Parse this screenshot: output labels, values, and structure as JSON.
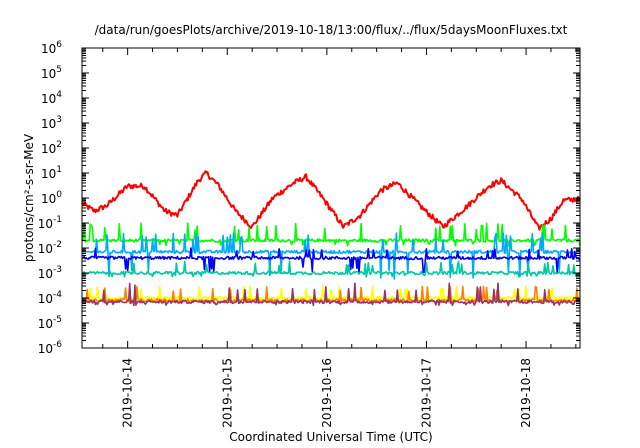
{
  "chart_data": {
    "type": "line",
    "title": "/data/run/goesPlots/archive/2019-10-18/13:00/flux/../flux/5daysMoonFluxes.txt",
    "xlabel": "Coordinated Universal Time (UTC)",
    "ylabel": "protons/cm²-s-sr-MeV",
    "yscale": "log",
    "ylim": [
      1e-06,
      1000000.0
    ],
    "xlim": [
      "2019-10-13T13:00",
      "2019-10-18T13:00"
    ],
    "xtick_labels": [
      "2019-10-14",
      "2019-10-15",
      "2019-10-16",
      "2019-10-17",
      "2019-10-18"
    ],
    "ytick_labels": [
      {
        "base": "10",
        "exp": "-6"
      },
      {
        "base": "10",
        "exp": "-5"
      },
      {
        "base": "10",
        "exp": "-4"
      },
      {
        "base": "10",
        "exp": "-3"
      },
      {
        "base": "10",
        "exp": "-2"
      },
      {
        "base": "10",
        "exp": "-1"
      },
      {
        "base": "10",
        "exp": "0"
      },
      {
        "base": "10",
        "exp": "1"
      },
      {
        "base": "10",
        "exp": "2"
      },
      {
        "base": "10",
        "exp": "3"
      },
      {
        "base": "10",
        "exp": "4"
      },
      {
        "base": "10",
        "exp": "5"
      },
      {
        "base": "10",
        "exp": "6"
      }
    ],
    "grid": false,
    "series": [
      {
        "color": "#ff0000",
        "keypoints": [
          [
            "2019-10-13T13:00",
            0.6
          ],
          [
            "2019-10-13T16:00",
            0.3
          ],
          [
            "2019-10-13T19:00",
            0.5
          ],
          [
            "2019-10-14T00:00",
            3.0
          ],
          [
            "2019-10-14T04:00",
            3.0
          ],
          [
            "2019-10-14T09:00",
            0.3
          ],
          [
            "2019-10-14T12:00",
            0.2
          ],
          [
            "2019-10-14T17:00",
            5.0
          ],
          [
            "2019-10-14T19:00",
            10.0
          ],
          [
            "2019-10-14T22:00",
            3.0
          ],
          [
            "2019-10-15T02:00",
            0.3
          ],
          [
            "2019-10-15T06:00",
            0.07
          ],
          [
            "2019-10-15T11:00",
            1.0
          ],
          [
            "2019-10-15T16:00",
            4.0
          ],
          [
            "2019-10-15T19:00",
            7.0
          ],
          [
            "2019-10-15T23:00",
            1.0
          ],
          [
            "2019-10-16T04:00",
            0.07
          ],
          [
            "2019-10-16T08:00",
            0.2
          ],
          [
            "2019-10-16T13:00",
            2.0
          ],
          [
            "2019-10-16T17:00",
            4.0
          ],
          [
            "2019-10-16T23:00",
            0.4
          ],
          [
            "2019-10-17T04:00",
            0.07
          ],
          [
            "2019-10-17T10:00",
            0.5
          ],
          [
            "2019-10-17T15:00",
            3.0
          ],
          [
            "2019-10-17T18:00",
            5.0
          ],
          [
            "2019-10-17T23:00",
            0.9
          ],
          [
            "2019-10-18T03:00",
            0.06
          ],
          [
            "2019-10-18T06:00",
            0.15
          ],
          [
            "2019-10-18T09:00",
            0.8
          ],
          [
            "2019-10-18T13:00",
            0.9
          ]
        ]
      },
      {
        "color": "#00ff00",
        "typical": 0.02,
        "spike_high": 0.1,
        "spike_low": 0.012
      },
      {
        "color": "#00aaff",
        "typical": 0.007,
        "spike_high": 0.04,
        "spike_low": 0.0005
      },
      {
        "color": "#0000ff",
        "typical": 0.004,
        "spike_high": 0.01,
        "spike_low": 0.001
      },
      {
        "color": "#00c8a0",
        "typical": 0.001,
        "spike_high": 0.003,
        "spike_low": 0.0007
      },
      {
        "color": "#ffff00",
        "typical": 0.0001,
        "spike_high": 0.0003,
        "spike_low": 8e-05
      },
      {
        "color": "#ff8000",
        "typical": 8e-05,
        "spike_high": 0.0003,
        "spike_low": 6e-05
      },
      {
        "color": "#993366",
        "typical": 7e-05,
        "spike_high": 0.0004,
        "spike_low": 5e-05
      }
    ]
  }
}
